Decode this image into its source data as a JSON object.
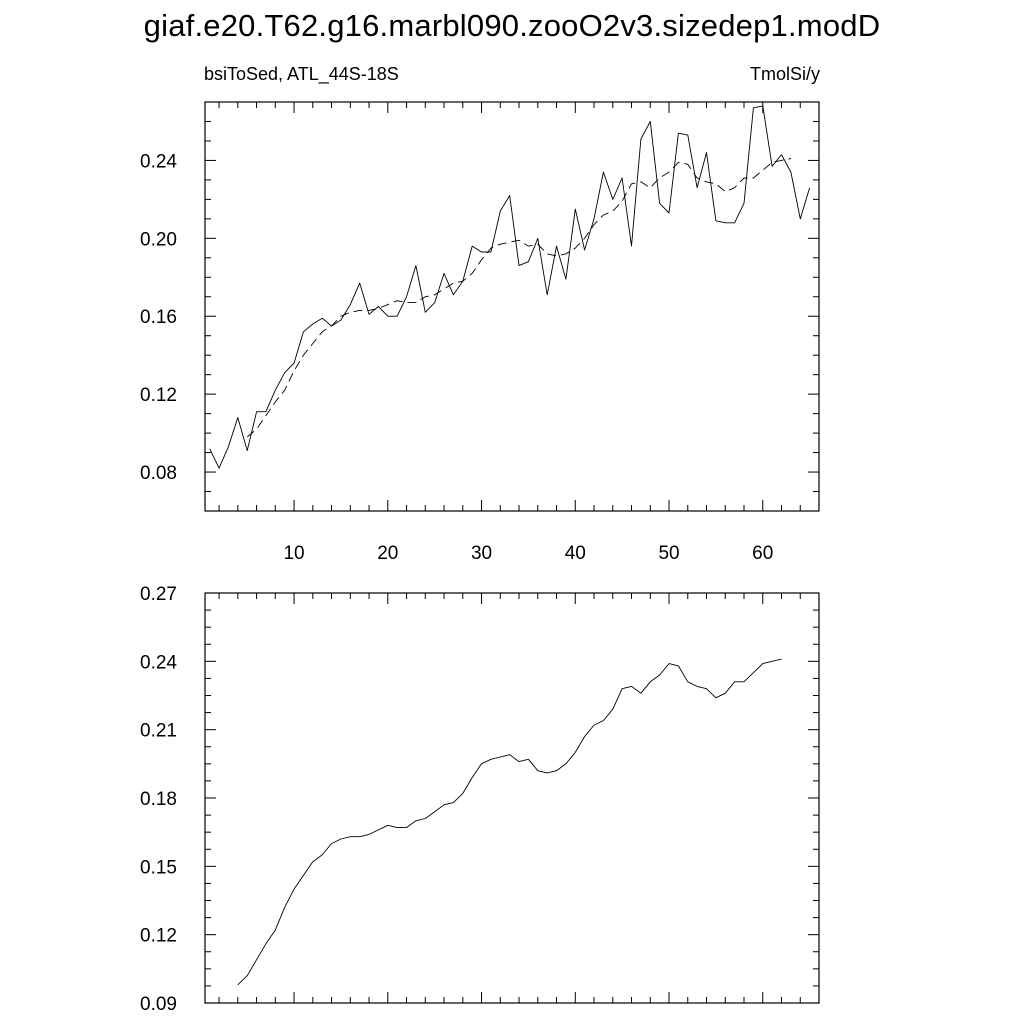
{
  "title": "giaf.e20.T62.g16.marbl090.zooO2v3.sizedep1.modD",
  "header": {
    "left_label": "bsiToSed, ATL_44S-18S",
    "right_label": "TmolSi/y"
  },
  "colors": {
    "line": "#000000",
    "background": "#ffffff"
  },
  "chart_data": [
    {
      "type": "line",
      "title": "",
      "xlabel": "",
      "ylabel": "",
      "xlim": [
        0.5,
        66
      ],
      "ylim": [
        0.06,
        0.27
      ],
      "x_ticks": [
        10,
        20,
        30,
        40,
        50,
        60
      ],
      "x_tick_labels": [
        "10",
        "20",
        "30",
        "40",
        "50",
        "60"
      ],
      "y_ticks": [
        0.08,
        0.12,
        0.16,
        0.2,
        0.24
      ],
      "y_tick_labels": [
        "0.08",
        "0.12",
        "0.16",
        "0.20",
        "0.24"
      ],
      "x": [
        1,
        2,
        3,
        4,
        5,
        6,
        7,
        8,
        9,
        10,
        11,
        12,
        13,
        14,
        15,
        16,
        17,
        18,
        19,
        20,
        21,
        22,
        23,
        24,
        25,
        26,
        27,
        28,
        29,
        30,
        31,
        32,
        33,
        34,
        35,
        36,
        37,
        38,
        39,
        40,
        41,
        42,
        43,
        44,
        45,
        46,
        47,
        48,
        49,
        50,
        51,
        52,
        53,
        54,
        55,
        56,
        57,
        58,
        59,
        60,
        61,
        62,
        63,
        64,
        65
      ],
      "series": [
        {
          "style": "solid",
          "values": [
            0.092,
            0.082,
            0.093,
            0.108,
            0.091,
            0.111,
            0.111,
            0.122,
            0.131,
            0.136,
            0.152,
            0.156,
            0.159,
            0.155,
            0.158,
            0.166,
            0.177,
            0.161,
            0.165,
            0.16,
            0.16,
            0.17,
            0.186,
            0.162,
            0.167,
            0.182,
            0.171,
            0.178,
            0.196,
            0.193,
            0.193,
            0.214,
            0.222,
            0.186,
            0.188,
            0.2,
            0.171,
            0.196,
            0.179,
            0.215,
            0.194,
            0.21,
            0.234,
            0.22,
            0.231,
            0.196,
            0.251,
            0.26,
            0.218,
            0.213,
            0.254,
            0.253,
            0.226,
            0.244,
            0.209,
            0.208,
            0.208,
            0.218,
            0.267,
            0.268,
            0.237,
            0.243,
            0.234,
            0.21,
            0.226
          ]
        },
        {
          "style": "dashed",
          "values": [
            null,
            null,
            null,
            null,
            0.098,
            0.102,
            0.109,
            0.116,
            0.122,
            0.132,
            0.14,
            0.146,
            0.152,
            0.155,
            0.16,
            0.162,
            0.163,
            0.163,
            0.164,
            0.166,
            0.168,
            0.167,
            0.167,
            0.17,
            0.171,
            0.174,
            0.177,
            0.178,
            0.182,
            0.189,
            0.195,
            0.197,
            0.198,
            0.199,
            0.196,
            0.197,
            0.192,
            0.191,
            0.192,
            0.195,
            0.2,
            0.207,
            0.212,
            0.214,
            0.219,
            0.228,
            0.229,
            0.226,
            0.231,
            0.234,
            0.239,
            0.238,
            0.231,
            0.229,
            0.228,
            0.224,
            0.226,
            0.231,
            0.231,
            0.235,
            0.239,
            0.24,
            0.241,
            null,
            null
          ]
        }
      ]
    },
    {
      "type": "line",
      "title": "",
      "xlabel": "",
      "ylabel": "",
      "xlim": [
        0.5,
        66
      ],
      "ylim": [
        0.09,
        0.27
      ],
      "x_ticks": [
        10,
        20,
        30,
        40,
        50,
        60
      ],
      "x_tick_labels": [],
      "y_ticks": [
        0.09,
        0.12,
        0.15,
        0.18,
        0.21,
        0.24,
        0.27
      ],
      "y_tick_labels": [
        "0.09",
        "0.12",
        "0.15",
        "0.18",
        "0.21",
        "0.24",
        "0.27"
      ],
      "x": [
        1,
        2,
        3,
        4,
        5,
        6,
        7,
        8,
        9,
        10,
        11,
        12,
        13,
        14,
        15,
        16,
        17,
        18,
        19,
        20,
        21,
        22,
        23,
        24,
        25,
        26,
        27,
        28,
        29,
        30,
        31,
        32,
        33,
        34,
        35,
        36,
        37,
        38,
        39,
        40,
        41,
        42,
        43,
        44,
        45,
        46,
        47,
        48,
        49,
        50,
        51,
        52,
        53,
        54,
        55,
        56,
        57,
        58,
        59,
        60,
        61,
        62,
        63,
        64,
        65
      ],
      "series": [
        {
          "style": "solid",
          "values": [
            null,
            null,
            null,
            0.098,
            0.102,
            0.109,
            0.116,
            0.122,
            0.132,
            0.14,
            0.146,
            0.152,
            0.155,
            0.16,
            0.162,
            0.163,
            0.163,
            0.164,
            0.166,
            0.168,
            0.167,
            0.167,
            0.17,
            0.171,
            0.174,
            0.177,
            0.178,
            0.182,
            0.189,
            0.195,
            0.197,
            0.198,
            0.199,
            0.196,
            0.197,
            0.192,
            0.191,
            0.192,
            0.195,
            0.2,
            0.207,
            0.212,
            0.214,
            0.219,
            0.228,
            0.229,
            0.226,
            0.231,
            0.234,
            0.239,
            0.238,
            0.231,
            0.229,
            0.228,
            0.224,
            0.226,
            0.231,
            0.231,
            0.235,
            0.239,
            0.24,
            0.241,
            null,
            null,
            null
          ]
        }
      ]
    }
  ]
}
